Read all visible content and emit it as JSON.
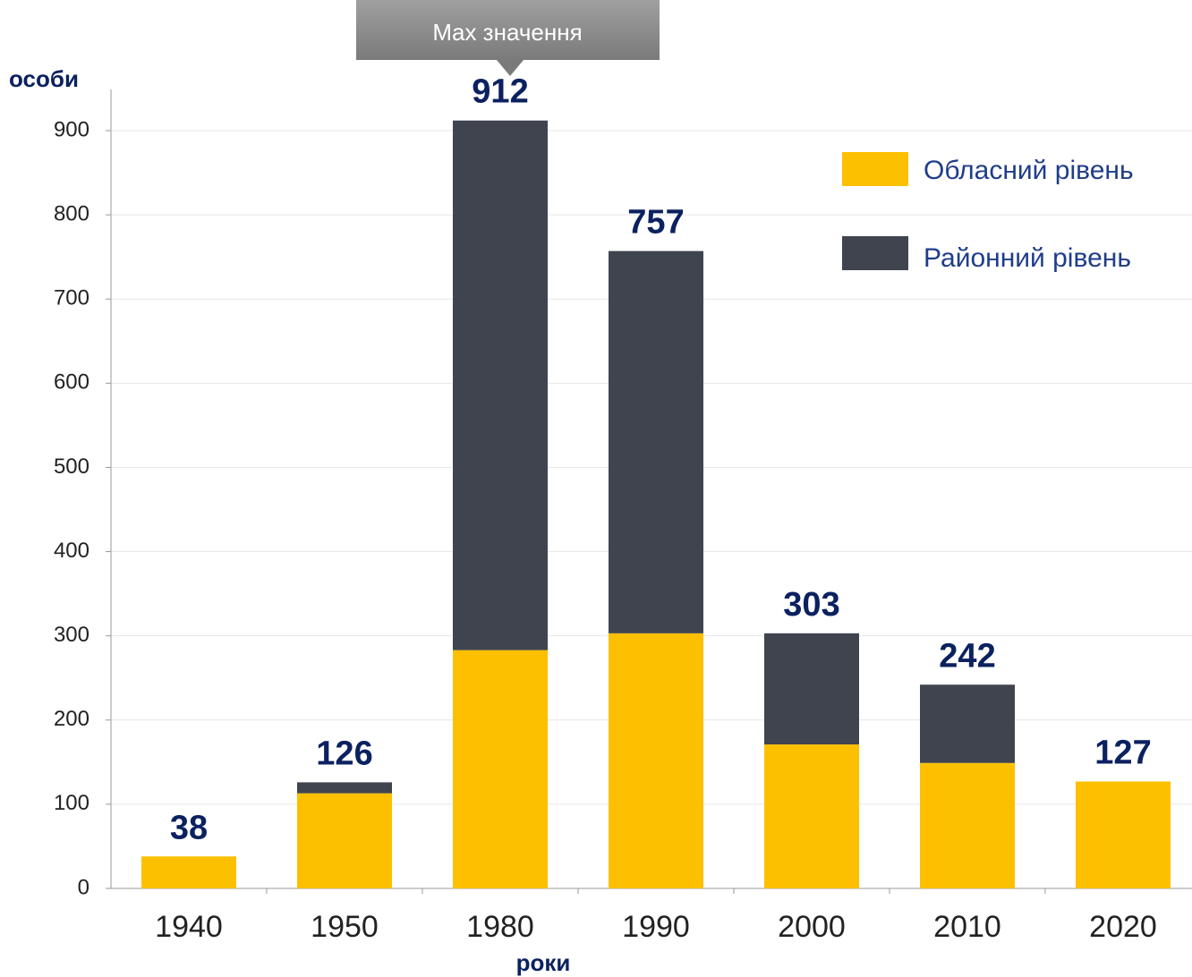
{
  "chart_data": {
    "type": "stacked_bar",
    "y_label": "особи",
    "x_label": "роки",
    "annotation": "Max значення",
    "categories": [
      "1940",
      "1950",
      "1980",
      "1990",
      "2000",
      "2010",
      "2020"
    ],
    "series": [
      {
        "name": "Обласний рівень",
        "color": "#fdc000",
        "values": [
          38,
          113,
          283,
          303,
          171,
          149,
          127
        ]
      },
      {
        "name": "Районний рівень",
        "color": "#40444f",
        "values": [
          0,
          13,
          629,
          454,
          132,
          93,
          0
        ]
      }
    ],
    "totals": [
      38,
      126,
      912,
      757,
      303,
      242,
      127
    ],
    "ylim": [
      0,
      900
    ],
    "yticks": [
      0,
      100,
      200,
      300,
      400,
      500,
      600,
      700,
      800,
      900
    ],
    "grid": true
  }
}
